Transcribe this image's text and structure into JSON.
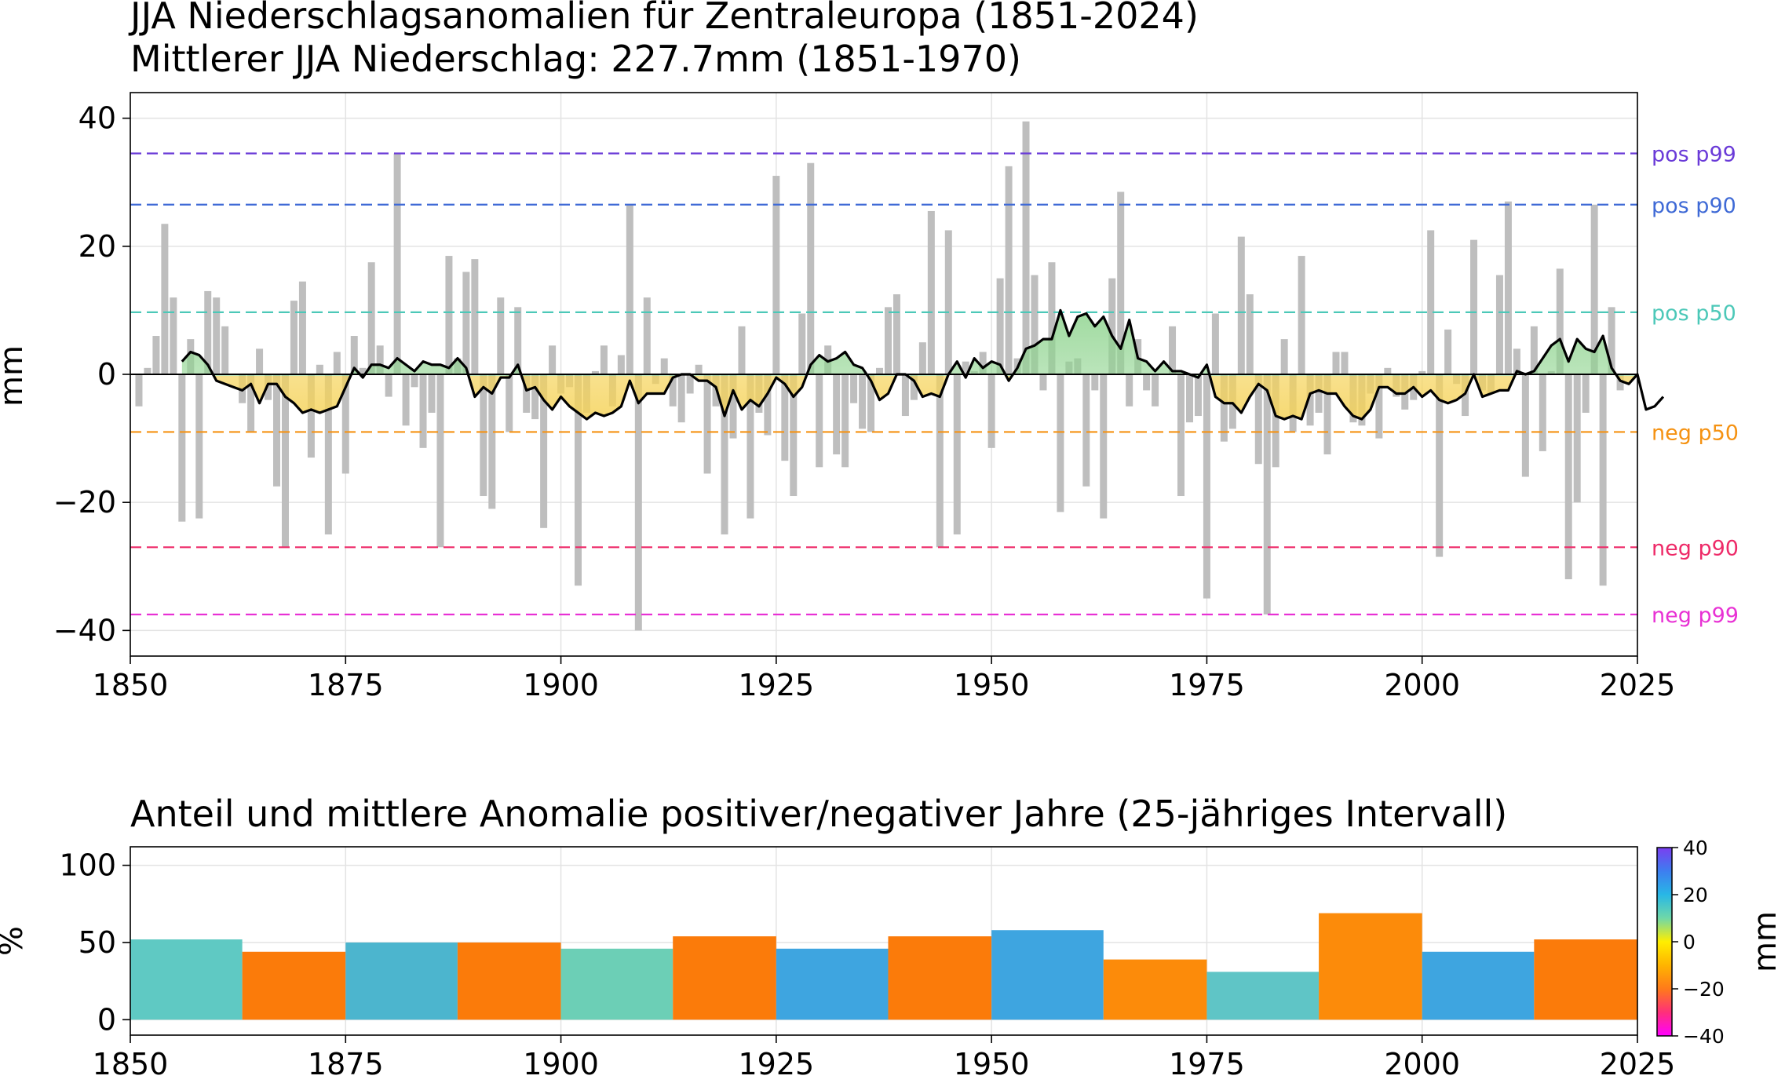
{
  "chart_data": [
    {
      "type": "bar",
      "title": "JJA Niederschlagsanomalien für Zentraleuropa (1851-2024)",
      "subtitle": "Mittlerer JJA Niederschlag: 227.7mm (1851-1970)",
      "xlabel": "",
      "ylabel": "mm",
      "xlim": [
        1850,
        2025
      ],
      "ylim": [
        -44,
        44
      ],
      "xticks": [
        "1850",
        "1875",
        "1900",
        "1925",
        "1950",
        "1975",
        "2000",
        "2025"
      ],
      "yticks": [
        "40",
        "20",
        "0",
        "−20",
        "−40"
      ],
      "grid": true,
      "bar_color": "#bebebe",
      "x_start": 1851,
      "values": [
        -5,
        1,
        6,
        23.5,
        12,
        -23,
        5.5,
        -22.5,
        13,
        12,
        7.5,
        0,
        -4.5,
        -9,
        4,
        -4,
        -17.5,
        -27,
        11.5,
        14.5,
        -13,
        1.5,
        -25,
        3.5,
        -15.5,
        6,
        1,
        17.5,
        4.5,
        -3.5,
        34.5,
        -8,
        -2,
        -11.5,
        -6,
        -27,
        18.5,
        2.5,
        16,
        18,
        -19,
        -21,
        12,
        -9,
        10.5,
        -6,
        -7,
        -24,
        4.5,
        -3,
        -2,
        -33,
        -6,
        0.5,
        4.5,
        -5,
        3,
        26.5,
        -40,
        12,
        -1.5,
        2.5,
        -5,
        -7.5,
        -3,
        1.5,
        -15.5,
        -5,
        -25,
        -10,
        7.5,
        -22.5,
        -6,
        -9.5,
        31,
        -13.5,
        -19,
        9.5,
        33,
        -14.5,
        4.5,
        -12.5,
        -14.5,
        -4.5,
        -8.5,
        -9,
        1,
        10.5,
        12.5,
        -6.5,
        -4,
        5,
        25.5,
        -27,
        22.5,
        -25,
        2,
        0.5,
        3.5,
        -11.5,
        15,
        32.5,
        2.5,
        39.5,
        15.5,
        -2.5,
        17.5,
        -21.5,
        2,
        2.5,
        -17.5,
        -2.5,
        -22.5,
        15,
        28.5,
        -5,
        5.5,
        -2.5,
        -5,
        0,
        7.5,
        -19,
        -7.5,
        -6.5,
        -35,
        9.5,
        -10.5,
        -8.5,
        21.5,
        12.5,
        -14,
        -37.5,
        -14.5,
        5.5,
        -9,
        18.5,
        -8,
        -6,
        -12.5,
        3.5,
        3.5,
        -7.5,
        -8,
        -3,
        -10,
        1,
        -3.5,
        -5.5,
        -4,
        0.5,
        22.5,
        -28.5,
        7,
        -1.5,
        -6.5,
        21,
        -2.5,
        -3,
        15.5,
        27,
        4,
        -16,
        7.5,
        -12,
        0.5,
        16.5,
        -32,
        -20,
        -6,
        26.5,
        -33,
        10.5,
        -2.5
      ],
      "smoothed": {
        "name": "",
        "x_start": 1856,
        "values": [
          2,
          3.5,
          3,
          1.5,
          -1,
          -1.5,
          -2,
          -2.5,
          -1.5,
          -4.5,
          -1.5,
          -1.5,
          -3.5,
          -4.5,
          -6,
          -5.5,
          -6,
          -5.5,
          -5,
          -2,
          1,
          -0.5,
          1.5,
          1.5,
          1,
          2.5,
          1.5,
          0.5,
          2,
          1.5,
          1.5,
          1,
          2.5,
          1,
          -3.5,
          -2,
          -3,
          -0.5,
          -0.5,
          1.5,
          -2.5,
          -2,
          -4,
          -5.5,
          -3.5,
          -5,
          -6,
          -7,
          -6,
          -6.5,
          -6,
          -5,
          -1,
          -4.5,
          -3,
          -3,
          -3,
          -0.5,
          0,
          0,
          -1,
          -1,
          -2,
          -6.5,
          -2.5,
          -5.5,
          -4,
          -5,
          -3,
          -0.5,
          -1.5,
          -3.5,
          -2,
          1.5,
          3,
          2,
          2.5,
          3.5,
          1.5,
          1,
          -1,
          -4,
          -3,
          0,
          0,
          -1,
          -3.5,
          -3,
          -3.5,
          0,
          2,
          -0.5,
          2.5,
          1,
          2,
          1.5,
          -1,
          1,
          4,
          4.5,
          5.5,
          5.5,
          10,
          6,
          9,
          9.5,
          7.5,
          9,
          6,
          4,
          8.5,
          2.5,
          2,
          0.5,
          2,
          0.5,
          0.5,
          0,
          -0.5,
          1.5,
          -3.5,
          -4.5,
          -4.5,
          -6,
          -3.5,
          -1.5,
          -2.5,
          -6.5,
          -7,
          -6.5,
          -7,
          -3,
          -2.5,
          -3,
          -3,
          -5,
          -6.5,
          -7,
          -5.5,
          -2,
          -2,
          -3,
          -3,
          -2,
          -3.5,
          -2.5,
          -4,
          -4.5,
          -4,
          -3,
          0,
          -3.5,
          -3,
          -2.5,
          -2.5,
          0.5,
          0,
          0.5,
          2.5,
          4.5,
          5.5,
          2,
          5.5,
          4,
          3.5,
          6,
          1,
          -1,
          -1.5,
          0,
          -5.5,
          -5,
          -3.5
        ]
      },
      "positive_fill_color": "#8fd48f",
      "negative_fill_color": "#f5d35a",
      "thresholds": [
        {
          "label": "pos p99",
          "value": 34.5,
          "color": "#6a3bd8"
        },
        {
          "label": "pos p90",
          "value": 26.5,
          "color": "#3f6ad6"
        },
        {
          "label": "pos p50",
          "value": 9.7,
          "color": "#4cc8b8"
        },
        {
          "label": "neg p50",
          "value": -9,
          "color": "#f59212"
        },
        {
          "label": "neg p90",
          "value": -27,
          "color": "#ee2a68"
        },
        {
          "label": "neg p99",
          "value": -37.5,
          "color": "#e831d4"
        }
      ]
    },
    {
      "type": "bar",
      "title": "Anteil und mittlere Anomalie positiver/negativer Jahre (25-jähriges Intervall)",
      "xlabel": "",
      "ylabel": "%",
      "xlim": [
        1850,
        2025
      ],
      "ylim": [
        -10,
        112
      ],
      "xticks": [
        "1850",
        "1875",
        "1900",
        "1925",
        "1950",
        "1975",
        "2000",
        "2025"
      ],
      "yticks": [
        "100",
        "50",
        "0"
      ],
      "grid": true,
      "bars": [
        {
          "start": 1850,
          "end": 1863,
          "value": 52,
          "color": "#5fc9c3"
        },
        {
          "start": 1863,
          "end": 1875,
          "value": 44,
          "color": "#fb7b0a"
        },
        {
          "start": 1875,
          "end": 1888,
          "value": 50,
          "color": "#4cb5ce"
        },
        {
          "start": 1888,
          "end": 1900,
          "value": 50,
          "color": "#fb7b0a"
        },
        {
          "start": 1900,
          "end": 1913,
          "value": 46,
          "color": "#6ccfb6"
        },
        {
          "start": 1913,
          "end": 1925,
          "value": 54,
          "color": "#fb7b0a"
        },
        {
          "start": 1925,
          "end": 1938,
          "value": 46,
          "color": "#3ea5e0"
        },
        {
          "start": 1938,
          "end": 1950,
          "value": 54,
          "color": "#fb7b0a"
        },
        {
          "start": 1950,
          "end": 1963,
          "value": 58,
          "color": "#3ea5e0"
        },
        {
          "start": 1963,
          "end": 1975,
          "value": 39,
          "color": "#fc8b0a"
        },
        {
          "start": 1975,
          "end": 1988,
          "value": 31,
          "color": "#5fc5c6"
        },
        {
          "start": 1988,
          "end": 2000,
          "value": 69,
          "color": "#fc8b0a"
        },
        {
          "start": 2000,
          "end": 2013,
          "value": 44,
          "color": "#3ea5e0"
        },
        {
          "start": 2013,
          "end": 2025,
          "value": 52,
          "color": "#fb7b0a"
        }
      ],
      "colorbar": {
        "label": "mm",
        "range": [
          -40,
          40
        ],
        "ticks": [
          "40",
          "20",
          "0",
          "−20",
          "−40"
        ],
        "colors": [
          "#ff00ff",
          "#ff2f7a",
          "#ff7a1a",
          "#ffb400",
          "#ffee00",
          "#6fd8a8",
          "#28b7e6",
          "#3d7ef0",
          "#7a3ef0"
        ]
      }
    }
  ]
}
